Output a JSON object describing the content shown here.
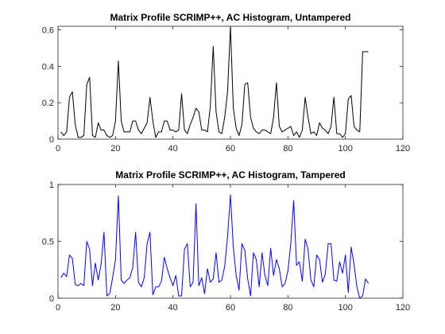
{
  "chart_data": [
    {
      "type": "line",
      "title": "Matrix Profile SCRIMP++, AC Histogram, Untampered",
      "xlabel": "",
      "ylabel": "",
      "xlim": [
        0,
        120
      ],
      "ylim": [
        0,
        0.62
      ],
      "xticks": [
        0,
        20,
        40,
        60,
        80,
        100,
        120
      ],
      "yticks": [
        0,
        0.2,
        0.4,
        0.6
      ],
      "yticklabels": [
        "0",
        "0.2",
        "0.4",
        "0.6"
      ],
      "grid": false,
      "series": [
        {
          "name": "",
          "color": "#000000",
          "x": [
            1,
            2,
            3,
            4,
            5,
            6,
            7,
            8,
            9,
            10,
            11,
            12,
            13,
            14,
            15,
            16,
            17,
            18,
            19,
            20,
            21,
            22,
            23,
            24,
            25,
            26,
            27,
            28,
            29,
            30,
            31,
            32,
            33,
            34,
            35,
            36,
            37,
            38,
            39,
            40,
            41,
            42,
            43,
            44,
            45,
            46,
            47,
            48,
            49,
            50,
            51,
            52,
            53,
            54,
            55,
            56,
            57,
            58,
            59,
            60,
            61,
            62,
            63,
            64,
            65,
            66,
            67,
            68,
            69,
            70,
            71,
            72,
            73,
            74,
            75,
            76,
            77,
            78,
            79,
            80,
            81,
            82,
            83,
            84,
            85,
            86,
            87,
            88,
            89,
            90,
            91,
            92,
            93,
            94,
            95,
            96,
            97,
            98,
            99,
            100,
            101,
            102,
            103,
            104,
            105,
            106,
            107,
            108
          ],
          "y": [
            0.04,
            0.02,
            0.04,
            0.23,
            0.26,
            0.08,
            0.01,
            0.01,
            0.02,
            0.3,
            0.34,
            0.02,
            0.01,
            0.09,
            0.05,
            0.05,
            0.02,
            0.01,
            0.02,
            0.1,
            0.43,
            0.1,
            0.04,
            0.04,
            0.04,
            0.1,
            0.1,
            0.05,
            0.03,
            0.06,
            0.09,
            0.23,
            0.1,
            0.01,
            0.04,
            0.04,
            0.1,
            0.1,
            0.05,
            0.05,
            0.04,
            0.05,
            0.25,
            0.05,
            0.03,
            0.08,
            0.12,
            0.17,
            0.15,
            0.05,
            0.05,
            0.04,
            0.18,
            0.51,
            0.15,
            0.04,
            0.03,
            0.12,
            0.26,
            0.62,
            0.17,
            0.06,
            0.02,
            0.08,
            0.3,
            0.31,
            0.12,
            0.06,
            0.04,
            0.03,
            0.05,
            0.05,
            0.04,
            0.03,
            0.12,
            0.31,
            0.07,
            0.04,
            0.05,
            0.06,
            0.07,
            0.02,
            0.04,
            0.01,
            0.05,
            0.23,
            0.12,
            0.03,
            0.04,
            0.02,
            0.09,
            0.06,
            0.05,
            0.03,
            0.07,
            0.23,
            0.03,
            0.03,
            0.01,
            0.03,
            0.22,
            0.24,
            0.07,
            0.05,
            0.04,
            0.48,
            0.48,
            0.48
          ]
        }
      ]
    },
    {
      "type": "line",
      "title": "Matrix Profile SCRIMP++, AC Histogram, Tampered",
      "xlabel": "",
      "ylabel": "",
      "xlim": [
        0,
        120
      ],
      "ylim": [
        0,
        1
      ],
      "xticks": [
        0,
        20,
        40,
        60,
        80,
        100,
        120
      ],
      "yticks": [
        0,
        0.5,
        1
      ],
      "yticklabels": [
        "0",
        "0.5",
        "1"
      ],
      "grid": false,
      "series": [
        {
          "name": "",
          "color": "#0000ff",
          "x": [
            1,
            2,
            3,
            4,
            5,
            6,
            7,
            8,
            9,
            10,
            11,
            12,
            13,
            14,
            15,
            16,
            17,
            18,
            19,
            20,
            21,
            22,
            23,
            24,
            25,
            26,
            27,
            28,
            29,
            30,
            31,
            32,
            33,
            34,
            35,
            36,
            37,
            38,
            39,
            40,
            41,
            42,
            43,
            44,
            45,
            46,
            47,
            48,
            49,
            50,
            51,
            52,
            53,
            54,
            55,
            56,
            57,
            58,
            59,
            60,
            61,
            62,
            63,
            64,
            65,
            66,
            67,
            68,
            69,
            70,
            71,
            72,
            73,
            74,
            75,
            76,
            77,
            78,
            79,
            80,
            81,
            82,
            83,
            84,
            85,
            86,
            87,
            88,
            89,
            90,
            91,
            92,
            93,
            94,
            95,
            96,
            97,
            98,
            99,
            100,
            101,
            102,
            103,
            104,
            105,
            106,
            107,
            108
          ],
          "y": [
            0.18,
            0.22,
            0.19,
            0.38,
            0.35,
            0.12,
            0.11,
            0.13,
            0.11,
            0.5,
            0.43,
            0.11,
            0.31,
            0.16,
            0.3,
            0.58,
            0.02,
            0.04,
            0.18,
            0.34,
            0.9,
            0.16,
            0.13,
            0.16,
            0.18,
            0.27,
            0.58,
            0.14,
            0.1,
            0.18,
            0.48,
            0.58,
            0.03,
            0.1,
            0.1,
            0.15,
            0.36,
            0.26,
            0.18,
            0.11,
            0.2,
            0.02,
            0.02,
            0.43,
            0.48,
            0.1,
            0.14,
            0.83,
            0.11,
            0.18,
            0.04,
            0.26,
            0.14,
            0.17,
            0.4,
            0.14,
            0.16,
            0.28,
            0.54,
            0.91,
            0.45,
            0.2,
            0.07,
            0.48,
            0.42,
            0.17,
            0.02,
            0.4,
            0.34,
            0.1,
            0.4,
            0.2,
            0.11,
            0.44,
            0.2,
            0.34,
            0.26,
            0.1,
            0.13,
            0.24,
            0.48,
            0.86,
            0.29,
            0.32,
            0.15,
            0.52,
            0.43,
            0.16,
            0.1,
            0.38,
            0.34,
            0.14,
            0.21,
            0.48,
            0.48,
            0.16,
            0.15,
            0.32,
            0.22,
            0.38,
            0.05,
            0.45,
            0.3,
            0.1,
            0.0,
            0.02,
            0.17,
            0.13
          ]
        }
      ]
    }
  ]
}
